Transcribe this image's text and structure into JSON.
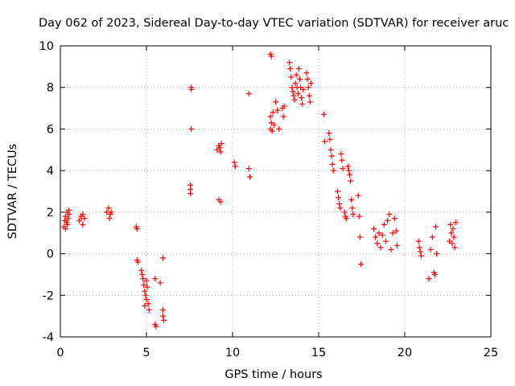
{
  "chart_data": {
    "type": "scatter",
    "title": "Day 062 of 2023, Sidereal Day-to-day VTEC variation (SDTVAR) for receiver aruc",
    "xlabel": "GPS time / hours",
    "ylabel": "SDTVAR / TECUs",
    "xlim": [
      0,
      25
    ],
    "ylim": [
      -4,
      10
    ],
    "xticks": [
      0,
      5,
      10,
      15,
      20,
      25
    ],
    "yticks": [
      -4,
      -2,
      0,
      2,
      4,
      6,
      8,
      10
    ],
    "grid": true,
    "marker": "+",
    "color": "#ff0000",
    "series": [
      {
        "name": "SDTVAR",
        "points": [
          [
            0.2,
            1.3
          ],
          [
            0.25,
            1.6
          ],
          [
            0.3,
            1.8
          ],
          [
            0.35,
            1.5
          ],
          [
            0.4,
            2.0
          ],
          [
            0.45,
            1.7
          ],
          [
            0.5,
            1.9
          ],
          [
            0.3,
            1.2
          ],
          [
            0.4,
            1.4
          ],
          [
            0.5,
            2.1
          ],
          [
            1.1,
            1.6
          ],
          [
            1.2,
            1.8
          ],
          [
            1.3,
            1.9
          ],
          [
            1.4,
            1.7
          ],
          [
            1.3,
            1.4
          ],
          [
            2.7,
            2.0
          ],
          [
            2.8,
            2.2
          ],
          [
            2.9,
            1.9
          ],
          [
            2.95,
            2.0
          ],
          [
            2.85,
            1.7
          ],
          [
            4.4,
            1.3
          ],
          [
            4.45,
            1.2
          ],
          [
            4.45,
            -0.3
          ],
          [
            4.5,
            -0.4
          ],
          [
            4.7,
            -0.8
          ],
          [
            4.75,
            -1.0
          ],
          [
            4.8,
            -1.2
          ],
          [
            4.85,
            -1.5
          ],
          [
            4.9,
            -1.8
          ],
          [
            4.95,
            -2.0
          ],
          [
            5.0,
            -2.2
          ],
          [
            5.05,
            -1.6
          ],
          [
            5.1,
            -2.4
          ],
          [
            5.15,
            -2.7
          ],
          [
            4.9,
            -2.5
          ],
          [
            5.0,
            -1.3
          ],
          [
            5.5,
            -3.4
          ],
          [
            5.55,
            -3.5
          ],
          [
            5.5,
            -1.2
          ],
          [
            5.8,
            -1.4
          ],
          [
            5.95,
            -0.2
          ],
          [
            5.95,
            -2.7
          ],
          [
            5.95,
            -3.0
          ],
          [
            6.0,
            -3.2
          ],
          [
            7.6,
            8.0
          ],
          [
            7.6,
            7.9
          ],
          [
            7.6,
            6.0
          ],
          [
            7.55,
            3.3
          ],
          [
            7.55,
            3.1
          ],
          [
            7.55,
            2.9
          ],
          [
            9.1,
            5.0
          ],
          [
            9.2,
            5.2
          ],
          [
            9.3,
            4.9
          ],
          [
            9.35,
            5.3
          ],
          [
            9.25,
            5.1
          ],
          [
            9.2,
            2.6
          ],
          [
            9.3,
            2.5
          ],
          [
            10.1,
            4.4
          ],
          [
            10.15,
            4.2
          ],
          [
            10.95,
            7.7
          ],
          [
            10.95,
            4.1
          ],
          [
            11.0,
            3.7
          ],
          [
            12.2,
            9.6
          ],
          [
            12.25,
            9.5
          ],
          [
            12.2,
            6.6
          ],
          [
            12.25,
            6.3
          ],
          [
            12.2,
            6.0
          ],
          [
            12.3,
            5.9
          ],
          [
            12.35,
            6.8
          ],
          [
            12.4,
            6.2
          ],
          [
            12.5,
            7.3
          ],
          [
            12.6,
            6.9
          ],
          [
            12.7,
            6.0
          ],
          [
            12.9,
            7.0
          ],
          [
            13.0,
            7.1
          ],
          [
            12.95,
            6.6
          ],
          [
            13.3,
            9.2
          ],
          [
            13.35,
            8.9
          ],
          [
            13.4,
            8.5
          ],
          [
            13.45,
            8.0
          ],
          [
            13.5,
            7.8
          ],
          [
            13.55,
            7.6
          ],
          [
            13.6,
            7.4
          ],
          [
            13.65,
            8.2
          ],
          [
            13.7,
            8.6
          ],
          [
            13.75,
            8.0
          ],
          [
            13.8,
            7.7
          ],
          [
            13.85,
            8.9
          ],
          [
            13.9,
            8.4
          ],
          [
            13.95,
            8.0
          ],
          [
            14.0,
            7.5
          ],
          [
            14.05,
            7.2
          ],
          [
            14.1,
            7.9
          ],
          [
            14.3,
            8.7
          ],
          [
            14.35,
            8.4
          ],
          [
            14.4,
            8.0
          ],
          [
            14.45,
            7.6
          ],
          [
            14.5,
            7.3
          ],
          [
            14.55,
            8.2
          ],
          [
            15.3,
            6.7
          ],
          [
            15.35,
            5.4
          ],
          [
            15.6,
            5.8
          ],
          [
            15.65,
            5.5
          ],
          [
            15.7,
            5.0
          ],
          [
            15.75,
            4.7
          ],
          [
            15.8,
            4.3
          ],
          [
            15.85,
            4.0
          ],
          [
            16.1,
            3.0
          ],
          [
            16.15,
            2.7
          ],
          [
            16.2,
            2.4
          ],
          [
            16.25,
            2.2
          ],
          [
            16.3,
            4.8
          ],
          [
            16.35,
            4.5
          ],
          [
            16.4,
            4.1
          ],
          [
            16.5,
            2.0
          ],
          [
            16.55,
            1.8
          ],
          [
            16.6,
            1.7
          ],
          [
            16.7,
            4.2
          ],
          [
            16.75,
            4.0
          ],
          [
            16.8,
            3.8
          ],
          [
            16.85,
            3.5
          ],
          [
            16.9,
            2.6
          ],
          [
            16.95,
            2.2
          ],
          [
            17.0,
            1.9
          ],
          [
            17.3,
            2.8
          ],
          [
            17.35,
            1.8
          ],
          [
            17.4,
            0.8
          ],
          [
            17.45,
            -0.5
          ],
          [
            18.2,
            1.2
          ],
          [
            18.3,
            0.8
          ],
          [
            18.4,
            0.5
          ],
          [
            18.5,
            1.0
          ],
          [
            18.6,
            0.3
          ],
          [
            18.7,
            0.9
          ],
          [
            18.8,
            1.4
          ],
          [
            18.9,
            0.6
          ],
          [
            19.0,
            1.6
          ],
          [
            19.1,
            1.9
          ],
          [
            19.2,
            0.2
          ],
          [
            19.3,
            1.0
          ],
          [
            19.4,
            1.7
          ],
          [
            19.5,
            1.1
          ],
          [
            19.55,
            0.4
          ],
          [
            20.8,
            0.6
          ],
          [
            20.85,
            0.3
          ],
          [
            20.9,
            0.1
          ],
          [
            20.95,
            -0.1
          ],
          [
            21.4,
            -1.2
          ],
          [
            21.5,
            0.2
          ],
          [
            21.6,
            0.8
          ],
          [
            21.7,
            -0.9
          ],
          [
            21.75,
            -1.0
          ],
          [
            21.8,
            1.3
          ],
          [
            21.85,
            0.0
          ],
          [
            22.6,
            0.6
          ],
          [
            22.65,
            1.4
          ],
          [
            22.7,
            1.0
          ],
          [
            22.75,
            0.5
          ],
          [
            22.8,
            1.2
          ],
          [
            22.85,
            0.8
          ],
          [
            22.9,
            0.3
          ],
          [
            22.95,
            1.5
          ]
        ]
      }
    ]
  }
}
